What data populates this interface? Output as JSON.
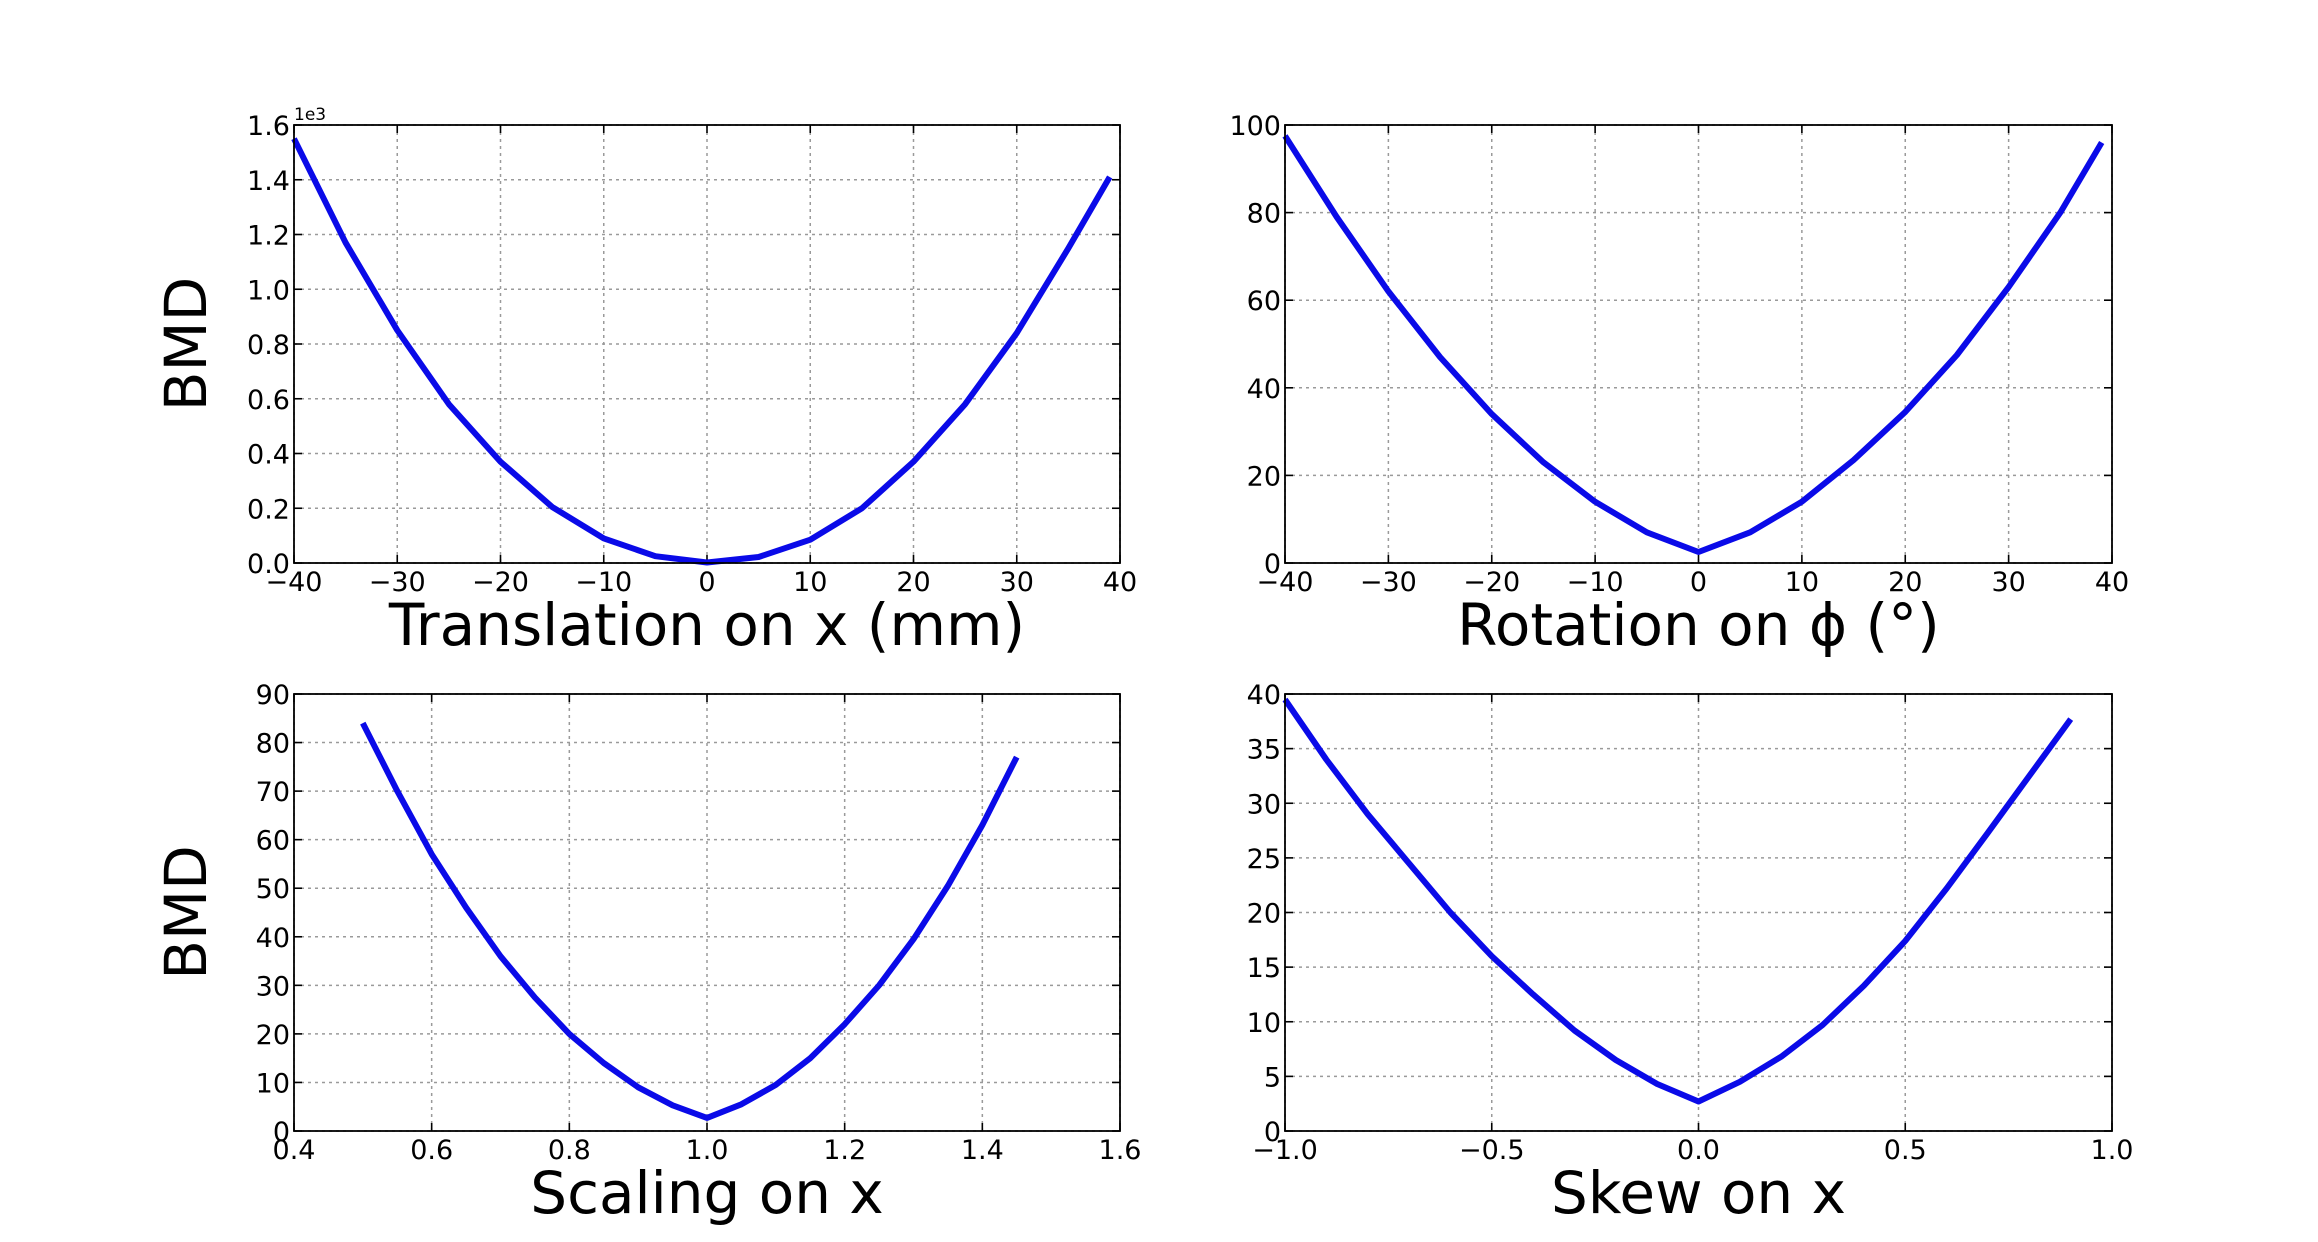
{
  "chart_data": [
    {
      "type": "line",
      "title": "",
      "xlabel": "Translation on x (mm)",
      "ylabel": "BMD",
      "xlim": [
        -40,
        40
      ],
      "ylim": [
        0,
        1600
      ],
      "grid": true,
      "y_offset_text": "1e3",
      "xticks": [
        -40,
        -30,
        -20,
        -10,
        0,
        10,
        20,
        30,
        40
      ],
      "xtick_labels": [
        "−40",
        "−30",
        "−20",
        "−10",
        "0",
        "10",
        "20",
        "30",
        "40"
      ],
      "yticks": [
        0,
        200,
        400,
        600,
        800,
        1000,
        1200,
        1400,
        1600
      ],
      "ytick_labels": [
        "0.0",
        "0.2",
        "0.4",
        "0.6",
        "0.8",
        "1.0",
        "1.2",
        "1.4",
        "1.6"
      ],
      "series": [
        {
          "color": "#0a0ae8",
          "x": [
            -40,
            -35,
            -30,
            -25,
            -20,
            -15,
            -10,
            -5,
            0,
            5,
            10,
            15,
            20,
            25,
            30,
            35,
            39
          ],
          "y": [
            1550,
            1170,
            850,
            580,
            370,
            205,
            90,
            25,
            2,
            22,
            85,
            200,
            370,
            580,
            840,
            1150,
            1410
          ]
        }
      ]
    },
    {
      "type": "line",
      "title": "",
      "xlabel": "Rotation on ϕ (°)",
      "ylabel": "",
      "xlim": [
        -40,
        40
      ],
      "ylim": [
        0,
        100
      ],
      "grid": true,
      "xticks": [
        -40,
        -30,
        -20,
        -10,
        0,
        10,
        20,
        30,
        40
      ],
      "xtick_labels": [
        "−40",
        "−30",
        "−20",
        "−10",
        "0",
        "10",
        "20",
        "30",
        "40"
      ],
      "yticks": [
        0,
        20,
        40,
        60,
        80,
        100
      ],
      "ytick_labels": [
        "0",
        "20",
        "40",
        "60",
        "80",
        "100"
      ],
      "series": [
        {
          "color": "#0a0ae8",
          "x": [
            -40,
            -35,
            -30,
            -25,
            -20,
            -15,
            -10,
            -5,
            0,
            5,
            10,
            15,
            20,
            25,
            30,
            35,
            39
          ],
          "y": [
            97.5,
            79,
            62,
            47,
            34,
            23,
            14,
            7,
            2.5,
            7,
            14,
            23.5,
            34.5,
            47.5,
            63,
            80,
            96
          ]
        }
      ]
    },
    {
      "type": "line",
      "title": "",
      "xlabel": "Scaling on x",
      "ylabel": "BMD",
      "xlim": [
        0.4,
        1.6
      ],
      "ylim": [
        0,
        90
      ],
      "grid": true,
      "xticks": [
        0.4,
        0.6,
        0.8,
        1.0,
        1.2,
        1.4,
        1.6
      ],
      "xtick_labels": [
        "0.4",
        "0.6",
        "0.8",
        "1.0",
        "1.2",
        "1.4",
        "1.6"
      ],
      "yticks": [
        0,
        10,
        20,
        30,
        40,
        50,
        60,
        70,
        80,
        90
      ],
      "ytick_labels": [
        "0",
        "10",
        "20",
        "30",
        "40",
        "50",
        "60",
        "70",
        "80",
        "90"
      ],
      "series": [
        {
          "color": "#0a0ae8",
          "x": [
            0.5,
            0.55,
            0.6,
            0.65,
            0.7,
            0.75,
            0.8,
            0.85,
            0.9,
            0.95,
            1.0,
            1.05,
            1.1,
            1.15,
            1.2,
            1.25,
            1.3,
            1.35,
            1.4,
            1.45
          ],
          "y": [
            84,
            70,
            57,
            46,
            36,
            27.5,
            20,
            14,
            9,
            5.3,
            2.7,
            5.5,
            9.5,
            15,
            22,
            30,
            39.5,
            50.5,
            63,
            77
          ]
        }
      ]
    },
    {
      "type": "line",
      "title": "",
      "xlabel": "Skew on x",
      "ylabel": "",
      "xlim": [
        -1.0,
        1.0
      ],
      "ylim": [
        0,
        40
      ],
      "grid": true,
      "xticks": [
        -1.0,
        -0.5,
        0.0,
        0.5,
        1.0
      ],
      "xtick_labels": [
        "−1.0",
        "−0.5",
        "0.0",
        "0.5",
        "1.0"
      ],
      "yticks": [
        0,
        5,
        10,
        15,
        20,
        25,
        30,
        35,
        40
      ],
      "ytick_labels": [
        "0",
        "5",
        "10",
        "15",
        "20",
        "25",
        "30",
        "35",
        "40"
      ],
      "series": [
        {
          "color": "#0a0ae8",
          "x": [
            -1.0,
            -0.9,
            -0.8,
            -0.7,
            -0.6,
            -0.5,
            -0.4,
            -0.3,
            -0.2,
            -0.1,
            0.0,
            0.1,
            0.2,
            0.3,
            0.4,
            0.5,
            0.6,
            0.7,
            0.8,
            0.9
          ],
          "y": [
            39.5,
            34,
            29,
            24.5,
            20,
            16,
            12.5,
            9.2,
            6.5,
            4.3,
            2.7,
            4.5,
            6.8,
            9.7,
            13.3,
            17.4,
            22.2,
            27.3,
            32.5,
            37.7
          ]
        }
      ]
    }
  ]
}
